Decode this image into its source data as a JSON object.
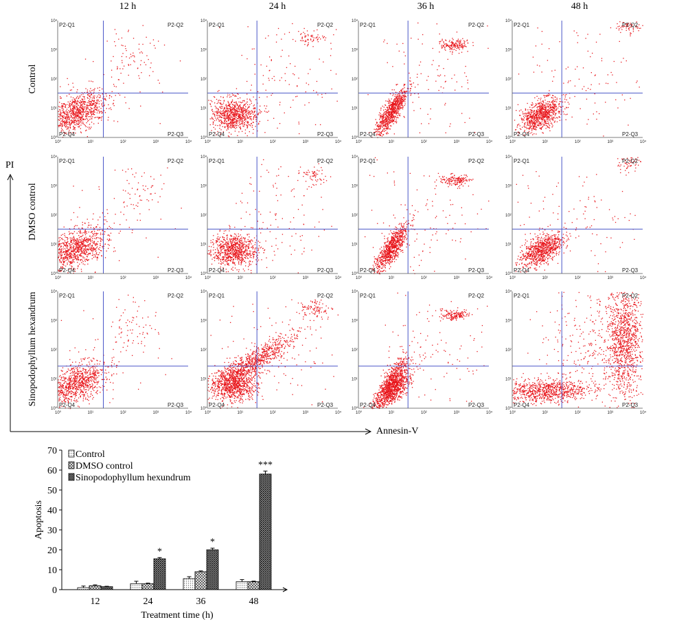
{
  "scatter_panels": {
    "columns": [
      "12 h",
      "24 h",
      "36 h",
      "48 h"
    ],
    "rows": [
      "Control",
      "DMSO control",
      "Sinopodophyllum hexandrum"
    ],
    "quadrants": [
      "P2-Q1",
      "P2-Q2",
      "P2-Q3",
      "P2-Q4"
    ],
    "y_axis_label": "PI",
    "x_axis_label": "Annesin-V",
    "tick_labels": [
      "10⁰",
      "10¹",
      "10²",
      "10³",
      "10⁴"
    ],
    "colors": {
      "dots": "#e8141a",
      "gates": "#4a56c8"
    }
  },
  "chart_data": {
    "type": "bar",
    "categories": [
      "12",
      "24",
      "36",
      "48"
    ],
    "series": [
      {
        "name": "Control",
        "values": [
          1,
          3,
          5.5,
          4
        ],
        "errors": [
          0.8,
          1.2,
          1.0,
          1.0
        ]
      },
      {
        "name": "DMSO control",
        "values": [
          2,
          3,
          9,
          4
        ],
        "errors": [
          0.4,
          0.3,
          0.4,
          0.3
        ]
      },
      {
        "name": "Sinopodophyllum hexundrum",
        "values": [
          1.5,
          15.5,
          20,
          58
        ],
        "errors": [
          0.2,
          0.6,
          0.8,
          1.5
        ]
      }
    ],
    "significance": [
      "",
      "*",
      "*",
      "***"
    ],
    "xlabel": "Treatment time (h)",
    "ylabel": "Apoptosis",
    "ylim": [
      0,
      70
    ],
    "yticks": [
      0,
      10,
      20,
      30,
      40,
      50,
      60,
      70
    ],
    "legend": "top-left",
    "grid": false
  }
}
